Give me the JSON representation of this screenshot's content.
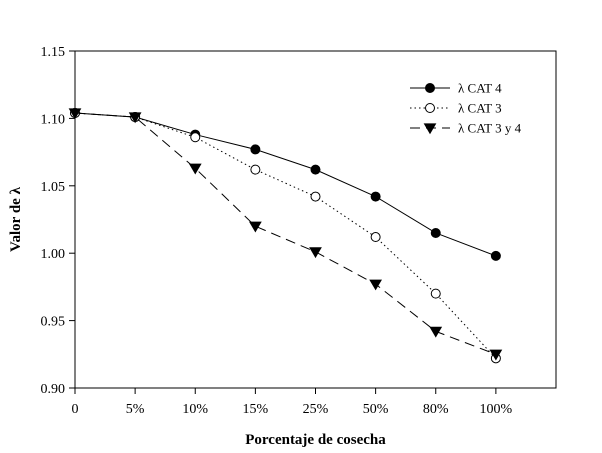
{
  "chart_data": {
    "type": "line",
    "title": "",
    "xlabel": "Porcentaje de cosecha",
    "ylabel": "Valor de λ",
    "categories": [
      "0",
      "5%",
      "10%",
      "15%",
      "25%",
      "50%",
      "80%",
      "100%"
    ],
    "ylim": [
      0.9,
      1.15
    ],
    "yticks": [
      "0.90",
      "0.95",
      "1.00",
      "1.05",
      "1.10",
      "1.15"
    ],
    "grid": false,
    "legend_position": "top-right",
    "series": [
      {
        "name": "λ CAT 4",
        "marker": "filled-circle",
        "line": "solid",
        "values": [
          1.104,
          1.101,
          1.088,
          1.077,
          1.062,
          1.042,
          1.015,
          0.998
        ]
      },
      {
        "name": "λ CAT 3",
        "marker": "open-circle",
        "line": "dotted",
        "values": [
          1.104,
          1.101,
          1.086,
          1.062,
          1.042,
          1.012,
          0.97,
          0.922
        ]
      },
      {
        "name": "λ CAT 3 y 4",
        "marker": "filled-triangle-down",
        "line": "dashed",
        "values": [
          1.104,
          1.101,
          1.063,
          1.02,
          1.001,
          0.977,
          0.942,
          0.925
        ]
      }
    ]
  }
}
